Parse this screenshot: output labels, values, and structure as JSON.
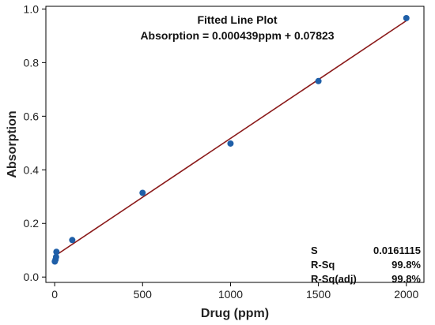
{
  "chart_data": {
    "type": "scatter",
    "title": "Fitted Line Plot",
    "subtitle": "Absorption = 0.000439ppm + 0.07823",
    "xlabel": "Drug (ppm)",
    "ylabel": "Absorption",
    "xlim": [
      -50,
      2100
    ],
    "ylim": [
      -0.02,
      1.01
    ],
    "xticks": [
      0,
      500,
      1000,
      1500,
      2000
    ],
    "yticks": [
      0.0,
      0.2,
      0.4,
      0.6,
      0.8,
      1.0
    ],
    "xtick_labels": [
      "0",
      "500",
      "1000",
      "1500",
      "2000"
    ],
    "ytick_labels": [
      "0.0",
      "0.2",
      "0.4",
      "0.6",
      "0.8",
      "1.0"
    ],
    "points": [
      {
        "x": 1,
        "y": 0.058
      },
      {
        "x": 5,
        "y": 0.065
      },
      {
        "x": 8,
        "y": 0.075
      },
      {
        "x": 10,
        "y": 0.094
      },
      {
        "x": 100,
        "y": 0.138
      },
      {
        "x": 500,
        "y": 0.314
      },
      {
        "x": 1000,
        "y": 0.498
      },
      {
        "x": 1500,
        "y": 0.731
      },
      {
        "x": 2000,
        "y": 0.966
      }
    ],
    "fit_line": {
      "slope": 0.000439,
      "intercept": 0.07823,
      "x_range": [
        0,
        2000
      ]
    },
    "grid": false,
    "colors": {
      "points": "#1f5fa8",
      "fit_line": "#8b1a1a"
    },
    "stats": [
      {
        "label": "S",
        "value": "0.0161115"
      },
      {
        "label": "R-Sq",
        "value": "99.8%"
      },
      {
        "label": "R-Sq(adj)",
        "value": "99.8%"
      }
    ]
  }
}
